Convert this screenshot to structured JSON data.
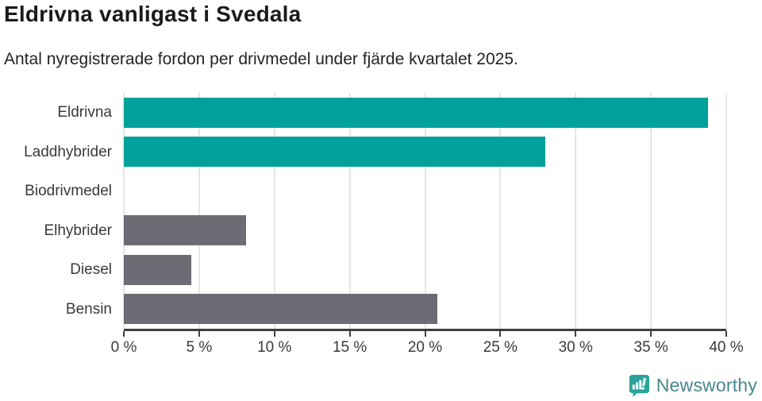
{
  "title": "Eldrivna vanligast i Svedala",
  "subtitle": "Antal nyregistrerade fordon per drivmedel under fjärde kvartalet 2025.",
  "logo": {
    "text": "Newsworthy",
    "icon": "newsworthy-speech-bubble-barchart-icon"
  },
  "colors": {
    "teal": "#00a19a",
    "gray": "#6c6c74",
    "axis": "#3f3f3f",
    "gridline": "#e5e5e5",
    "logo_icon": "#2ba39b",
    "logo_text": "#49868c"
  },
  "chart_data": {
    "type": "bar",
    "orientation": "horizontal",
    "title": "Eldrivna vanligast i Svedala",
    "subtitle": "Antal nyregistrerade fordon per drivmedel under fjärde kvartalet 2025.",
    "categories": [
      "Eldrivna",
      "Laddhybrider",
      "Biodrivmedel",
      "Elhybrider",
      "Diesel",
      "Bensin"
    ],
    "values": [
      38.8,
      28.0,
      0,
      8.1,
      4.5,
      20.8
    ],
    "unit": "%",
    "bar_colors": [
      "#00a19a",
      "#00a19a",
      "#6c6c74",
      "#6c6c74",
      "#6c6c74",
      "#6c6c74"
    ],
    "xlim": [
      0,
      40
    ],
    "x_ticks": [
      0,
      5,
      10,
      15,
      20,
      25,
      30,
      35,
      40
    ],
    "x_tick_labels": [
      "0 %",
      "5 %",
      "10 %",
      "15 %",
      "20 %",
      "25 %",
      "30 %",
      "35 %",
      "40 %"
    ],
    "grid": true,
    "legend": "none"
  }
}
